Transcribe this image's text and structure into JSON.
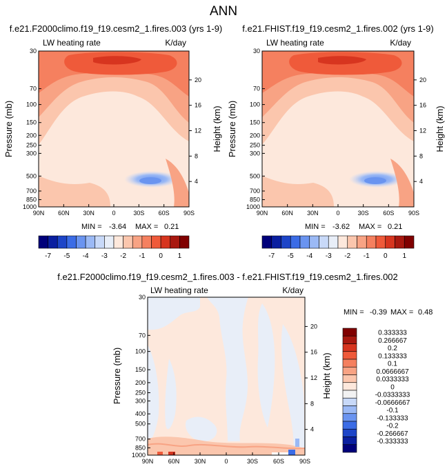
{
  "figure_title": "ANN",
  "colors": {
    "cold": [
      "#00007a",
      "#0a1fa0",
      "#1d45c8",
      "#3b6ce6",
      "#6a94f0",
      "#9bb9f5",
      "#c8d9f8",
      "#e8eef8"
    ],
    "warm": [
      "#fde8dc",
      "#fbc6ad",
      "#f8a384",
      "#f5805f",
      "#ef5a3a",
      "#d7351f",
      "#a8180f",
      "#800000"
    ],
    "neutral": "#f2f2f2"
  },
  "chart_data": [
    {
      "id": "panel1",
      "type": "heatmap",
      "title": "f.e21.F2000climo.f19_f19.cesm2_1.fires.003 (yrs 1-9)",
      "left_label": "LW heating rate",
      "right_label": "K/day",
      "ylabel": "Pressure (mb)",
      "ylabel_right": "Height (km)",
      "x_ticks": [
        "90N",
        "60N",
        "30N",
        "0",
        "30S",
        "60S",
        "90S"
      ],
      "xlim": [
        90,
        -90
      ],
      "y_ticks": [
        30,
        70,
        100,
        150,
        200,
        250,
        300,
        500,
        700,
        850,
        1000
      ],
      "y_tick_labels": [
        "30",
        "70",
        "100",
        "150",
        "200",
        "250",
        "300",
        "500",
        "700",
        "850",
        "1000"
      ],
      "ylim_mb": [
        30,
        1000
      ],
      "height_ticks_km": [
        4,
        8,
        12,
        16,
        20
      ],
      "height_tick_labels": [
        "4",
        "8",
        "12",
        "16",
        "20"
      ],
      "stats": {
        "min_label": "MIN =",
        "min": "-3.64",
        "max_label": "MAX =",
        "max": "0.21"
      },
      "approx_field": {
        "background": -2.0,
        "upper_band": -0.9,
        "core_band": -0.2,
        "min_region": -3.6
      }
    },
    {
      "id": "panel2",
      "type": "heatmap",
      "title": "f.e21.FHIST.f19_f19.cesm2_1.fires.002 (yrs 1-9)",
      "left_label": "LW heating rate",
      "right_label": "K/day",
      "ylabel": "Pressure (mb)",
      "ylabel_right": "Height (km)",
      "x_ticks": [
        "90N",
        "60N",
        "30N",
        "0",
        "30S",
        "60S",
        "90S"
      ],
      "xlim": [
        90,
        -90
      ],
      "y_ticks": [
        30,
        70,
        100,
        150,
        200,
        250,
        300,
        500,
        700,
        850,
        1000
      ],
      "y_tick_labels": [
        "30",
        "70",
        "100",
        "150",
        "200",
        "250",
        "300",
        "500",
        "700",
        "850",
        "1000"
      ],
      "ylim_mb": [
        30,
        1000
      ],
      "height_ticks_km": [
        4,
        8,
        12,
        16,
        20
      ],
      "height_tick_labels": [
        "4",
        "8",
        "12",
        "16",
        "20"
      ],
      "stats": {
        "min_label": "MIN =",
        "min": "-3.62",
        "max_label": "MAX =",
        "max": "0.21"
      },
      "approx_field": {
        "background": -2.0,
        "upper_band": -0.9,
        "core_band": -0.2,
        "min_region": -3.6
      }
    },
    {
      "id": "colorbar_main",
      "type": "colorbar",
      "orientation": "horizontal",
      "labels": [
        "-7",
        "-5",
        "-4",
        "-3",
        "-2",
        "-1",
        "0",
        "1"
      ],
      "colors": [
        "#00007a",
        "#0a1fa0",
        "#1d45c8",
        "#3b6ce6",
        "#6a94f0",
        "#9bb9f5",
        "#c8d9f8",
        "#e8eef8",
        "#fde8dc",
        "#fbc6ad",
        "#f8a384",
        "#f5805f",
        "#ef5a3a",
        "#d7351f",
        "#a8180f",
        "#800000"
      ]
    },
    {
      "id": "panel3",
      "type": "heatmap",
      "title": "f.e21.F2000climo.f19_f19.cesm2_1.fires.003 - f.e21.FHIST.f19_f19.cesm2_1.fires.002",
      "left_label": "LW heating rate",
      "right_label": "K/day",
      "ylabel": "Pressure (mb)",
      "ylabel_right": "Height (km)",
      "x_ticks": [
        "90N",
        "60N",
        "30N",
        "0",
        "30S",
        "60S",
        "90S"
      ],
      "xlim": [
        90,
        -90
      ],
      "y_ticks": [
        30,
        70,
        100,
        150,
        200,
        250,
        300,
        400,
        500,
        700,
        850,
        1000
      ],
      "y_tick_labels": [
        "30",
        "70",
        "100",
        "150",
        "200",
        "250",
        "300",
        "400",
        "500",
        "700",
        "850",
        "1000"
      ],
      "ylim_mb": [
        30,
        1000
      ],
      "height_ticks_km": [
        4,
        8,
        12,
        16,
        20
      ],
      "height_tick_labels": [
        "4",
        "8",
        "12",
        "16",
        "20"
      ],
      "stats": {
        "min_label": "MIN =",
        "min": "-0.39",
        "max_label": "MAX =",
        "max": "0.48"
      },
      "approx_field": {
        "background": 0.02,
        "negative_patches": -0.03
      }
    },
    {
      "id": "colorbar_diff",
      "type": "colorbar",
      "orientation": "vertical",
      "labels": [
        "0.333333",
        "0.266667",
        "0.2",
        "0.133333",
        "0.1",
        "0.0666667",
        "0.0333333",
        "0",
        "-0.0333333",
        "-0.0666667",
        "-0.1",
        "-0.133333",
        "-0.2",
        "-0.266667",
        "-0.333333"
      ],
      "colors": [
        "#800000",
        "#a8180f",
        "#d7351f",
        "#ef5a3a",
        "#f5805f",
        "#f8a384",
        "#fbc6ad",
        "#fde8dc",
        "#f2f2f2",
        "#c8d9f8",
        "#9bb9f5",
        "#6a94f0",
        "#3b6ce6",
        "#1d45c8",
        "#0a1fa0",
        "#00007a"
      ]
    }
  ]
}
